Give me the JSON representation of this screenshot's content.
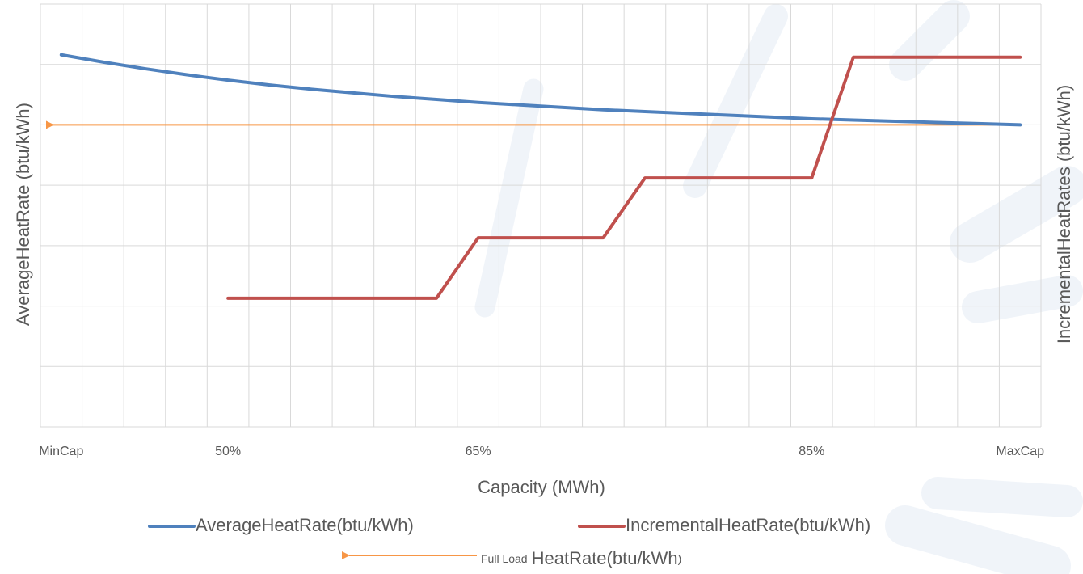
{
  "chart_data": {
    "type": "line",
    "x_label": "Capacity (MWh)",
    "y_label": "AverageHeatRate (btu/kWh)",
    "y2_label": "IncrementalHeatRates (btu/kWh)",
    "categories": [
      "MinCap",
      null,
      null,
      null,
      "50%",
      null,
      null,
      null,
      null,
      null,
      "65%",
      null,
      null,
      null,
      null,
      null,
      null,
      null,
      "85%",
      null,
      null,
      null,
      null,
      "MaxCap"
    ],
    "series": [
      {
        "name": "AverageHeatRate(btu/kWh)",
        "color": "#4f81bd",
        "values": [
          6.16,
          6.04,
          5.93,
          5.83,
          5.74,
          5.66,
          5.59,
          5.53,
          5.47,
          5.42,
          5.37,
          5.33,
          5.29,
          5.25,
          5.22,
          5.19,
          5.16,
          5.13,
          5.1,
          5.08,
          5.06,
          5.04,
          5.02,
          5.0
        ]
      },
      {
        "name": "IncrementalHeatRate(btu/kWh)",
        "color": "#c0504d",
        "axis": "y2",
        "values": [
          null,
          null,
          null,
          null,
          2.13,
          2.13,
          2.13,
          2.13,
          2.13,
          2.13,
          3.13,
          3.13,
          3.13,
          3.13,
          4.12,
          4.12,
          4.12,
          4.12,
          4.12,
          6.12,
          6.12,
          6.12,
          6.12,
          6.12
        ]
      }
    ],
    "reference_line": {
      "name_parts": [
        "Full Load",
        "HeatRate(btu/kWh",
        ")"
      ],
      "value": 5.0,
      "color": "#f79646"
    },
    "ylim": [
      0,
      7
    ],
    "yticks": [
      0,
      1,
      2,
      3,
      4,
      5,
      6,
      7
    ],
    "y2lim": [
      0,
      7
    ],
    "grid": true
  }
}
